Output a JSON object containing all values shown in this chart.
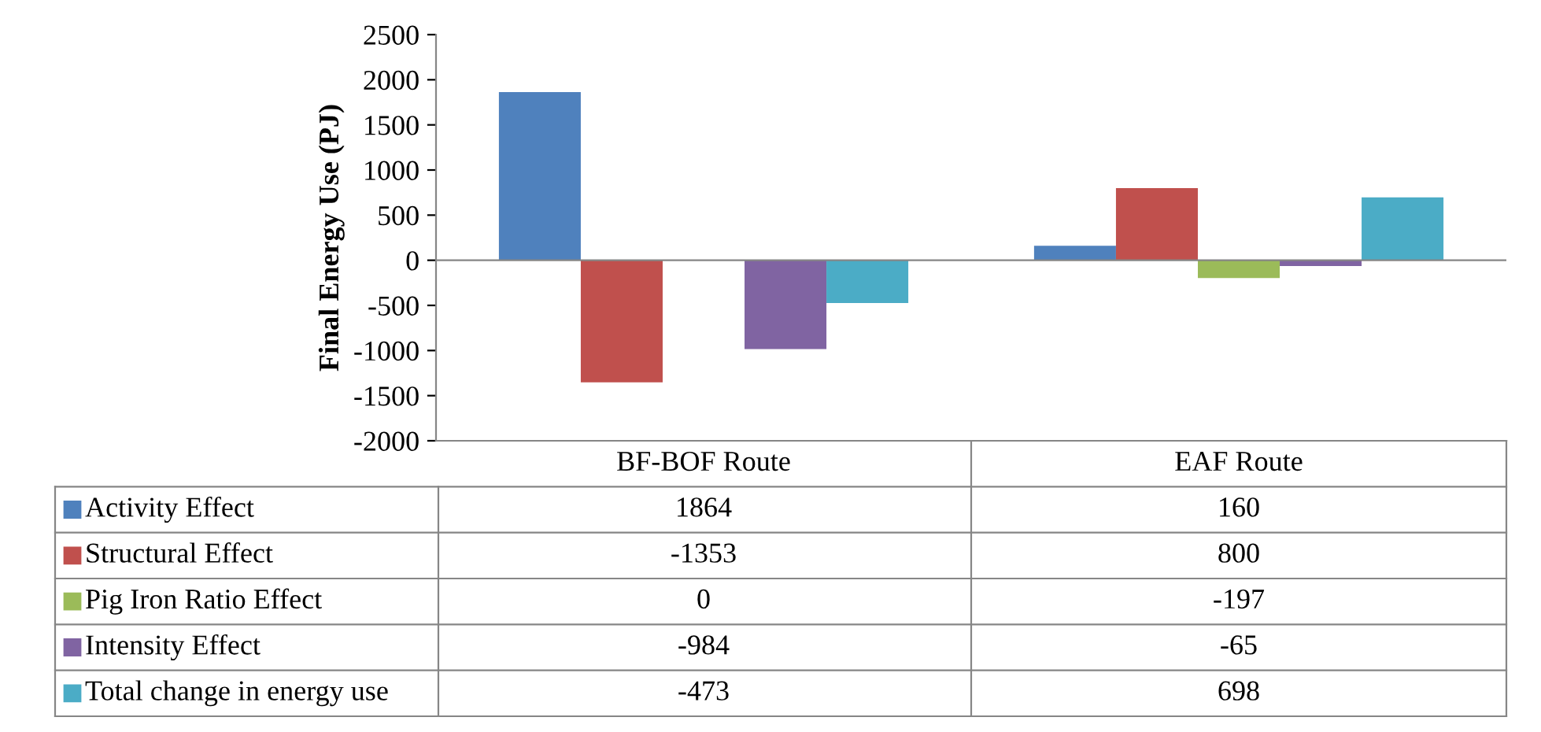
{
  "chart_data": {
    "type": "bar",
    "ylabel": "Final Energy Use (PJ)",
    "categories": [
      "BF-BOF Route",
      "EAF Route"
    ],
    "series": [
      {
        "name": "Activity Effect",
        "color": "#4f81bd",
        "values": [
          1864,
          160
        ]
      },
      {
        "name": "Structural Effect",
        "color": "#c0504d",
        "values": [
          -1353,
          800
        ]
      },
      {
        "name": "Pig Iron Ratio Effect",
        "color": "#9bbb59",
        "values": [
          0,
          -197
        ]
      },
      {
        "name": "Intensity Effect",
        "color": "#8064a2",
        "values": [
          -984,
          -65
        ]
      },
      {
        "name": "Total change in energy use",
        "color": "#4bacc6",
        "values": [
          -473,
          698
        ]
      }
    ],
    "ylim": [
      -2000,
      2500
    ],
    "yticks": [
      -2000,
      -1500,
      -1000,
      -500,
      0,
      500,
      1000,
      1500,
      2000,
      2500
    ],
    "data_labels": true,
    "legend": "bottom"
  }
}
